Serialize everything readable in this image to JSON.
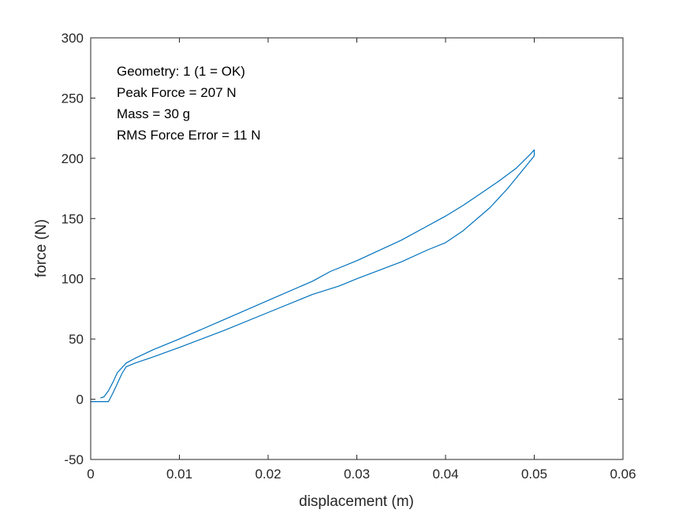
{
  "chart_data": {
    "type": "line",
    "title": "",
    "xlabel": "displacement (m)",
    "ylabel": "force (N)",
    "xlim": [
      0,
      0.06
    ],
    "ylim": [
      -50,
      300
    ],
    "xticks": [
      0,
      0.01,
      0.02,
      0.03,
      0.04,
      0.05,
      0.06
    ],
    "xtick_labels": [
      "0",
      "0.01",
      "0.02",
      "0.03",
      "0.04",
      "0.05",
      "0.06"
    ],
    "yticks": [
      -50,
      0,
      50,
      100,
      150,
      200,
      250,
      300
    ],
    "ytick_labels": [
      "-50",
      "0",
      "50",
      "100",
      "150",
      "200",
      "250",
      "300"
    ],
    "grid": false,
    "legend": "none",
    "series_color": "#0072BD",
    "annotations": [
      "Geometry: 1 (1 = OK)",
      "Peak Force = 207 N",
      "Mass = 30 g",
      "RMS Force Error = 11 N"
    ],
    "series": [
      {
        "x": [
          0.0,
          0.0011,
          0.0015,
          0.002,
          0.0025,
          0.003,
          0.0035,
          0.004,
          0.005,
          0.007,
          0.01,
          0.015,
          0.02,
          0.025,
          0.028,
          0.03,
          0.035,
          0.038,
          0.04,
          0.042,
          0.045,
          0.047,
          0.049,
          0.05,
          0.05,
          0.0495,
          0.048,
          0.046,
          0.044,
          0.042,
          0.04,
          0.038,
          0.035,
          0.03,
          0.027,
          0.025,
          0.02,
          0.015,
          0.01,
          0.007,
          0.005,
          0.0045,
          0.004,
          0.003,
          0.0025,
          0.002,
          0.0015,
          0.0011
        ],
        "y": [
          -2,
          -2,
          -2,
          -2,
          5,
          13,
          21,
          27,
          30,
          35,
          43,
          57,
          72,
          87,
          94,
          100,
          114,
          124,
          130,
          140,
          159,
          175,
          193,
          202,
          207,
          203,
          192,
          181,
          171,
          161,
          152,
          144,
          132,
          115,
          106,
          98,
          82,
          66,
          50,
          41,
          34,
          32,
          30,
          22,
          14,
          7,
          2,
          1
        ]
      }
    ]
  }
}
